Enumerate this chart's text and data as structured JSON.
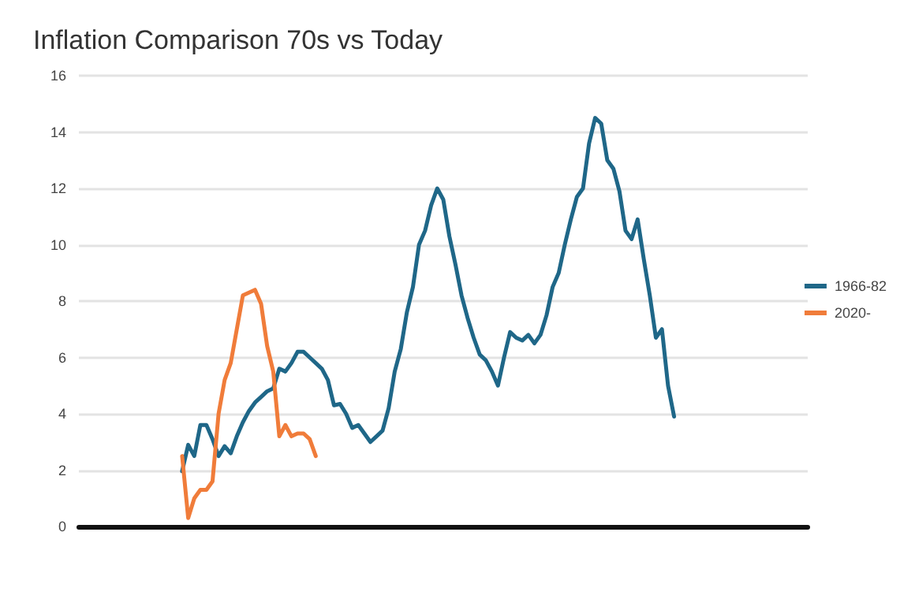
{
  "chart_data": {
    "type": "line",
    "title": "Inflation Comparison 70s vs Today",
    "categories": [
      null,
      null,
      null,
      null,
      null,
      null,
      null,
      null,
      null,
      null,
      null,
      null,
      null,
      null,
      null,
      null,
      null,
      null,
      null,
      null,
      null,
      null,
      null,
      null,
      null,
      null,
      null,
      null,
      null,
      null,
      null,
      null,
      null,
      null,
      null,
      null,
      null,
      null,
      null,
      null,
      null,
      null,
      null,
      null,
      null,
      null,
      null,
      null,
      null,
      null,
      null,
      null,
      null,
      null,
      null,
      null,
      null,
      null,
      null,
      null,
      null,
      null,
      null,
      null,
      null,
      null,
      null,
      null,
      null,
      null,
      null,
      null,
      null,
      null,
      null,
      null,
      null,
      null,
      null,
      null,
      null,
      null,
      null,
      null,
      null,
      null,
      null,
      null,
      null,
      null,
      null,
      null,
      null,
      null,
      null,
      null,
      null,
      null,
      null,
      null,
      null,
      null,
      null,
      null,
      null,
      null,
      null,
      null,
      null,
      null,
      null,
      null,
      null,
      null,
      null,
      null,
      null,
      null,
      null,
      null,
      null
    ],
    "series": [
      {
        "name": "1966-82",
        "color": "#1f6788",
        "values": [
          null,
          null,
          null,
          null,
          null,
          null,
          null,
          null,
          null,
          null,
          null,
          null,
          null,
          null,
          null,
          null,
          null,
          1.96,
          2.9,
          2.5,
          3.6,
          3.6,
          3.1,
          2.5,
          2.85,
          2.6,
          3.2,
          3.7,
          4.1,
          4.4,
          4.6,
          4.8,
          4.9,
          5.6,
          5.5,
          5.8,
          6.2,
          6.2,
          6.0,
          5.8,
          5.6,
          5.2,
          4.3,
          4.35,
          4.0,
          3.5,
          3.6,
          3.3,
          3.0,
          3.2,
          3.4,
          4.2,
          5.5,
          6.3,
          7.6,
          8.5,
          10.0,
          10.5,
          11.4,
          12.0,
          11.6,
          10.3,
          9.3,
          8.2,
          7.4,
          6.7,
          6.1,
          5.9,
          5.5,
          5.0,
          6.0,
          6.9,
          6.7,
          6.6,
          6.8,
          6.5,
          6.8,
          7.5,
          8.5,
          9.0,
          10.0,
          10.9,
          11.7,
          12.0,
          13.6,
          14.5,
          14.3,
          13.0,
          12.7,
          11.9,
          10.5,
          10.2,
          10.9,
          9.5,
          8.2,
          6.7,
          7.0,
          5.0,
          3.9,
          null,
          null,
          null,
          null,
          null,
          null,
          null,
          null,
          null,
          null,
          null,
          null,
          null,
          null,
          null,
          null,
          null,
          null,
          null,
          null,
          null,
          null
        ]
      },
      {
        "name": "2020-",
        "color": "#f07c3a",
        "values": [
          null,
          null,
          null,
          null,
          null,
          null,
          null,
          null,
          null,
          null,
          null,
          null,
          null,
          null,
          null,
          null,
          null,
          2.5,
          0.3,
          1.0,
          1.3,
          1.3,
          1.6,
          4.0,
          5.2,
          5.8,
          7.0,
          8.2,
          8.3,
          8.4,
          7.9,
          6.4,
          5.5,
          3.2,
          3.6,
          3.2,
          3.3,
          3.3,
          3.1,
          2.5,
          null,
          null,
          null,
          null,
          null,
          null,
          null,
          null,
          null,
          null,
          null,
          null,
          null,
          null,
          null,
          null,
          null,
          null,
          null,
          null,
          null,
          null,
          null,
          null,
          null,
          null,
          null,
          null,
          null,
          null,
          null,
          null,
          null,
          null,
          null,
          null,
          null,
          null,
          null,
          null,
          null,
          null,
          null,
          null,
          null,
          null,
          null,
          null,
          null,
          null,
          null,
          null,
          null,
          null,
          null,
          null,
          null,
          null,
          null,
          null,
          null,
          null,
          null,
          null,
          null,
          null,
          null,
          null,
          null,
          null,
          null,
          null,
          null,
          null,
          null,
          null,
          null,
          null,
          null,
          null,
          null
        ]
      }
    ],
    "ylim": [
      0,
      16
    ],
    "yticks": [
      0,
      2,
      4,
      6,
      8,
      10,
      12,
      14,
      16
    ],
    "grid": "y",
    "legend": "right",
    "tick_labels": "y",
    "line_style": "solid"
  }
}
